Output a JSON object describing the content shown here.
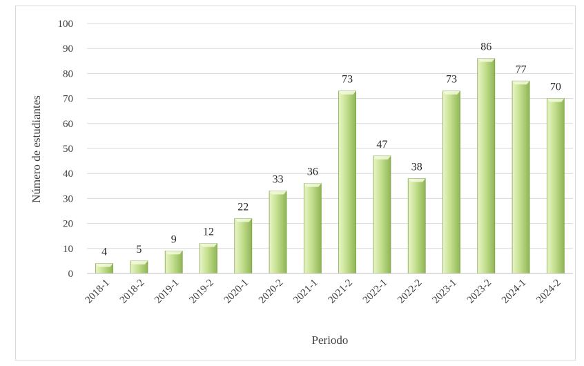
{
  "chart_data": {
    "type": "bar",
    "title": "",
    "xlabel": "Periodo",
    "ylabel": "Número de estudiantes",
    "ylim": [
      0,
      100
    ],
    "yticks": [
      0,
      10,
      20,
      30,
      40,
      50,
      60,
      70,
      80,
      90,
      100
    ],
    "grid": true,
    "legend": "none",
    "categories": [
      "2018-1",
      "2018-2",
      "2019-1",
      "2019-2",
      "2020-1",
      "2020-2",
      "2021-1",
      "2021-2",
      "2022-1",
      "2022-2",
      "2023-1",
      "2023-2",
      "2024-1",
      "2024-2"
    ],
    "values": [
      4,
      5,
      9,
      12,
      22,
      33,
      36,
      73,
      47,
      38,
      73,
      86,
      77,
      70
    ],
    "colors": {
      "bar_light": "#eaf5c8",
      "bar_mid": "#c4df8e",
      "bar_dark": "#8fb555",
      "bar_edge": "#7da346",
      "grid": "#d9d9d9"
    }
  }
}
